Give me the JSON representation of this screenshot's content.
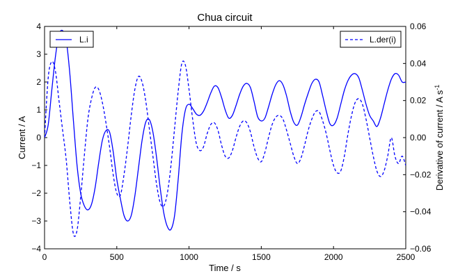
{
  "chart_data": {
    "type": "line",
    "title": "Chua circuit",
    "xlabel": "Time / s",
    "ylabel_left": "Current / A",
    "ylabel_right": "Derivative of current / A s",
    "ylabel_right_superscript": "-1",
    "xlim": [
      0,
      2500
    ],
    "ylim_left": [
      -4,
      4
    ],
    "ylim_right": [
      -0.06,
      0.06
    ],
    "x_ticks": [
      "0",
      "500",
      "1000",
      "1500",
      "2000",
      "2500"
    ],
    "y_left_ticks": [
      "−4",
      "−3",
      "−2",
      "−1",
      "0",
      "1",
      "2",
      "3",
      "4"
    ],
    "y_right_ticks": [
      "−0.06",
      "−0.04",
      "−0.02",
      "0.00",
      "0.02",
      "0.04",
      "0.06"
    ],
    "grid": false,
    "legend_left": {
      "placement": "top-left",
      "entries": [
        "L.i"
      ]
    },
    "legend_right": {
      "placement": "top-right",
      "entries": [
        "L.der(i)"
      ]
    },
    "series": [
      {
        "name": "L.i",
        "axis": "left",
        "style": "solid",
        "color": "#0000ff",
        "x": [
          0,
          25,
          50,
          75,
          100,
          125,
          150,
          175,
          200,
          225,
          250,
          275,
          300,
          325,
          350,
          375,
          400,
          425,
          450,
          475,
          500,
          525,
          550,
          575,
          600,
          625,
          650,
          675,
          700,
          725,
          750,
          775,
          800,
          825,
          850,
          875,
          900,
          925,
          950,
          975,
          1000,
          1025,
          1050,
          1075,
          1100,
          1125,
          1150,
          1175,
          1200,
          1225,
          1250,
          1275,
          1300,
          1325,
          1350,
          1375,
          1400,
          1425,
          1450,
          1475,
          1500,
          1525,
          1550,
          1575,
          1600,
          1625,
          1650,
          1675,
          1700,
          1725,
          1750,
          1775,
          1800,
          1825,
          1850,
          1875,
          1900,
          1925,
          1950,
          1975,
          2000,
          2025,
          2050,
          2075,
          2100,
          2125,
          2150,
          2175,
          2200,
          2225,
          2250,
          2275,
          2300,
          2325,
          2350,
          2375,
          2400,
          2425,
          2450,
          2475,
          2500
        ],
        "y": [
          0,
          0.45,
          1.7,
          2.9,
          3.7,
          3.85,
          3.5,
          2.3,
          0.6,
          -1.0,
          -2.0,
          -2.45,
          -2.6,
          -2.4,
          -1.8,
          -0.9,
          -0.1,
          0.25,
          0.2,
          -0.5,
          -1.5,
          -2.2,
          -2.8,
          -3.0,
          -2.8,
          -2.1,
          -1.1,
          -0.1,
          0.55,
          0.65,
          0.2,
          -0.7,
          -1.8,
          -2.7,
          -3.2,
          -3.3,
          -2.8,
          -1.5,
          0.1,
          1.0,
          1.2,
          1.05,
          0.85,
          0.8,
          0.95,
          1.25,
          1.6,
          1.85,
          1.8,
          1.45,
          1.0,
          0.7,
          0.8,
          1.15,
          1.55,
          1.85,
          1.95,
          1.8,
          1.3,
          0.75,
          0.6,
          0.7,
          1.1,
          1.55,
          1.9,
          2.05,
          1.9,
          1.5,
          0.95,
          0.55,
          0.45,
          0.75,
          1.2,
          1.6,
          1.95,
          2.1,
          2.0,
          1.5,
          0.95,
          0.5,
          0.45,
          0.7,
          1.2,
          1.7,
          2.05,
          2.25,
          2.3,
          2.15,
          1.7,
          1.2,
          0.8,
          0.6,
          0.4,
          0.7,
          1.2,
          1.7,
          2.1,
          2.3,
          2.25,
          2.0,
          2.0
        ]
      },
      {
        "name": "L.der(i)",
        "axis": "right",
        "style": "dashed",
        "color": "#0000ff",
        "x": [
          0,
          25,
          50,
          75,
          100,
          125,
          150,
          175,
          200,
          225,
          250,
          275,
          300,
          325,
          350,
          375,
          400,
          425,
          450,
          475,
          500,
          525,
          550,
          575,
          600,
          625,
          650,
          675,
          700,
          725,
          750,
          775,
          800,
          825,
          850,
          875,
          900,
          925,
          950,
          975,
          1000,
          1025,
          1050,
          1075,
          1100,
          1125,
          1150,
          1175,
          1200,
          1225,
          1250,
          1275,
          1300,
          1325,
          1350,
          1375,
          1400,
          1425,
          1450,
          1475,
          1500,
          1525,
          1550,
          1575,
          1600,
          1625,
          1650,
          1675,
          1700,
          1725,
          1750,
          1775,
          1800,
          1825,
          1850,
          1875,
          1900,
          1925,
          1950,
          1975,
          2000,
          2025,
          2050,
          2075,
          2100,
          2125,
          2150,
          2175,
          2200,
          2225,
          2250,
          2275,
          2300,
          2325,
          2350,
          2375,
          2400,
          2425,
          2450,
          2475,
          2500
        ],
        "y": [
          0,
          0.032,
          0.041,
          0.036,
          0.02,
          0.004,
          -0.012,
          -0.035,
          -0.052,
          -0.05,
          -0.032,
          -0.01,
          0.01,
          0.021,
          0.027,
          0.026,
          0.019,
          0.008,
          -0.005,
          -0.02,
          -0.03,
          -0.031,
          -0.02,
          -0.005,
          0.012,
          0.026,
          0.033,
          0.03,
          0.02,
          0.005,
          -0.01,
          -0.025,
          -0.035,
          -0.037,
          -0.03,
          -0.015,
          0.005,
          0.025,
          0.04,
          0.039,
          0.026,
          0.01,
          -0.003,
          -0.007,
          -0.005,
          0.002,
          0.007,
          0.008,
          0.004,
          -0.004,
          -0.01,
          -0.011,
          -0.007,
          0.0,
          0.006,
          0.009,
          0.008,
          0.003,
          -0.005,
          -0.011,
          -0.013,
          -0.008,
          0.0,
          0.007,
          0.011,
          0.012,
          0.01,
          0.004,
          -0.003,
          -0.01,
          -0.014,
          -0.011,
          -0.004,
          0.004,
          0.01,
          0.014,
          0.014,
          0.009,
          0.002,
          -0.007,
          -0.015,
          -0.019,
          -0.018,
          -0.01,
          0.002,
          0.012,
          0.019,
          0.021,
          0.018,
          0.01,
          0.0,
          -0.01,
          -0.018,
          -0.021,
          -0.018,
          -0.01,
          0.0,
          -0.01,
          -0.014,
          -0.01,
          -0.015
        ]
      }
    ]
  }
}
